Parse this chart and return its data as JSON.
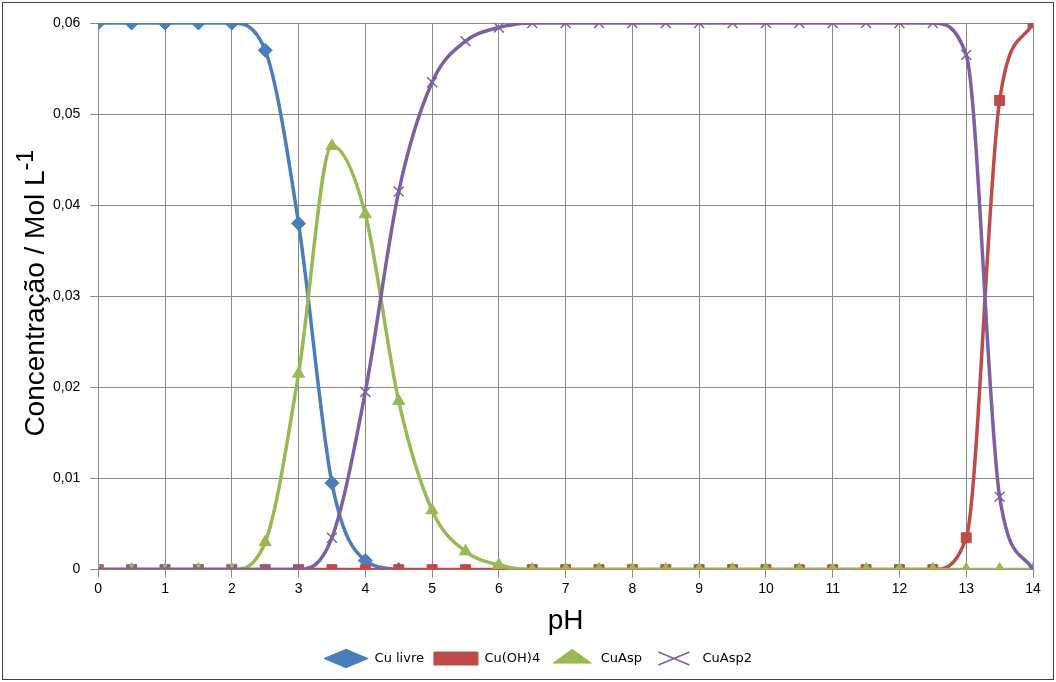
{
  "chart_data": {
    "type": "line",
    "xlabel": "pH",
    "ylabel": "Concentração / Mol L$^{-1}$",
    "x": [
      0,
      0.5,
      1,
      1.5,
      2,
      2.5,
      3,
      3.5,
      4,
      4.5,
      5,
      5.5,
      6,
      6.5,
      7,
      7.5,
      8,
      8.5,
      9,
      9.5,
      10,
      10.5,
      11,
      11.5,
      12,
      12.5,
      13,
      13.5,
      14
    ],
    "series": [
      {
        "name": "Cu livre",
        "color": "#4a7ebb",
        "marker": "diamond",
        "values": [
          0.06,
          0.06,
          0.06,
          0.06,
          0.06,
          0.057,
          0.038,
          0.0095,
          0.001,
          0,
          null,
          null,
          null,
          null,
          null,
          null,
          null,
          null,
          null,
          null,
          null,
          null,
          null,
          null,
          null,
          null,
          null,
          null,
          null
        ]
      },
      {
        "name": "Cu(OH)4",
        "color": "#be4b48",
        "marker": "square",
        "values": [
          0,
          0,
          0,
          0,
          0,
          0,
          0,
          0,
          0,
          0,
          0,
          0,
          0,
          0,
          0,
          0,
          0,
          0,
          0,
          0,
          0,
          0,
          0,
          0,
          0,
          0,
          0.0035,
          0.0515,
          0.06
        ]
      },
      {
        "name": "CuAsp",
        "color": "#98b954",
        "marker": "triangle",
        "values": [
          0,
          0,
          0,
          0,
          0,
          0.003,
          0.0215,
          0.0465,
          0.039,
          0.0185,
          0.0065,
          0.002,
          0.0005,
          0,
          0,
          0,
          0,
          0,
          0,
          0,
          0,
          0,
          0,
          0,
          0,
          0,
          0,
          0,
          0
        ]
      },
      {
        "name": "CuAsp2",
        "color": "#7d60a0",
        "marker": "cross",
        "values": [
          0,
          0,
          0,
          0,
          0,
          0,
          0,
          0.0035,
          0.0195,
          0.0415,
          0.0535,
          0.058,
          0.0595,
          0.06,
          0.06,
          0.06,
          0.06,
          0.06,
          0.06,
          0.06,
          0.06,
          0.06,
          0.06,
          0.06,
          0.06,
          0.06,
          0.0565,
          0.008,
          0
        ]
      }
    ],
    "xlim": [
      0,
      14
    ],
    "xticks": [
      0,
      1,
      2,
      3,
      4,
      5,
      6,
      7,
      8,
      9,
      10,
      11,
      12,
      13,
      14
    ],
    "ylim": [
      0,
      0.06
    ],
    "yticks": [
      0,
      {
        "value": 0.01,
        "label": "0,01"
      },
      {
        "value": 0.02,
        "label": "0,02"
      },
      {
        "value": 0.03,
        "label": "0,03"
      },
      {
        "value": 0.04,
        "label": "0,04"
      },
      {
        "value": 0.05,
        "label": "0,05"
      },
      {
        "value": 0.06,
        "label": "0,06"
      }
    ],
    "grid": true,
    "legend": "bottom"
  }
}
